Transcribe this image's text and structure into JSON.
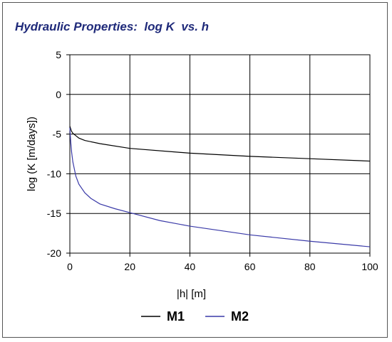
{
  "chart_data": {
    "type": "line",
    "title": "Hydraulic Properties:  log K  vs. h",
    "xlabel": "|h| [m]",
    "ylabel": "log (K [m/days])",
    "xlim": [
      0,
      100
    ],
    "ylim": [
      -20,
      5
    ],
    "xticks": [
      0,
      20,
      40,
      60,
      80,
      100
    ],
    "yticks": [
      5,
      0,
      -5,
      -10,
      -15,
      -20
    ],
    "grid": true,
    "legend": "bottom",
    "series": [
      {
        "name": "M1",
        "color": "#000000",
        "x": [
          0,
          0.5,
          1,
          2,
          3,
          5,
          10,
          20,
          40,
          60,
          80,
          100
        ],
        "y": [
          -4.0,
          -4.6,
          -4.9,
          -5.2,
          -5.5,
          -5.8,
          -6.2,
          -6.8,
          -7.4,
          -7.8,
          -8.1,
          -8.4
        ]
      },
      {
        "name": "M2",
        "color": "#3a3aa8",
        "x": [
          0,
          0.3,
          0.6,
          1,
          2,
          3,
          5,
          7,
          10,
          15,
          20,
          30,
          40,
          60,
          80,
          100
        ],
        "y": [
          -4.2,
          -6.0,
          -7.3,
          -8.5,
          -10.3,
          -11.3,
          -12.4,
          -13.1,
          -13.8,
          -14.4,
          -14.9,
          -15.9,
          -16.6,
          -17.7,
          -18.5,
          -19.2
        ]
      }
    ]
  }
}
